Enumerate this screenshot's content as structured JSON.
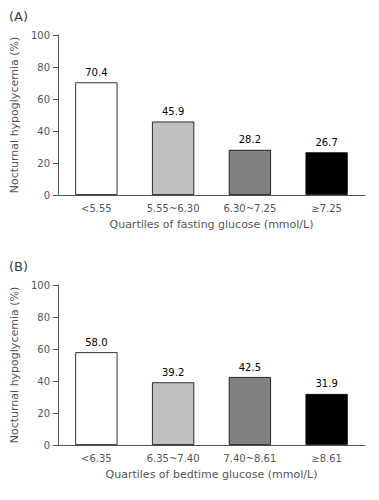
{
  "chart_data": [
    {
      "type": "bar",
      "title": "(A)",
      "categories": [
        "<5.55",
        "5.55~6.30",
        "6.30~7.25",
        "≥7.25"
      ],
      "values": [
        70.4,
        45.9,
        28.2,
        26.7
      ],
      "colors": [
        "#ffffff",
        "#c0c0c0",
        "#808080",
        "#000000"
      ],
      "xlabel": "Quartiles of fasting glucose (mmol/L)",
      "ylabel": "Nocturnal hypoglycemia (%)",
      "ylim": [
        0,
        100
      ],
      "yticks": [
        0,
        20,
        40,
        60,
        80,
        100
      ],
      "grid": false,
      "data_labels": true
    },
    {
      "type": "bar",
      "title": "(B)",
      "categories": [
        "<6.35",
        "6.35~7.40",
        "7.40~8.61",
        "≥8.61"
      ],
      "values": [
        58.0,
        39.2,
        42.5,
        31.9
      ],
      "value_labels": [
        "58.0",
        "39.2",
        "42.5",
        "31.9"
      ],
      "colors": [
        "#ffffff",
        "#c0c0c0",
        "#808080",
        "#000000"
      ],
      "xlabel": "Quartiles of bedtime glucose (mmol/L)",
      "ylabel": "Nocturnal hypoglycemia (%)",
      "ylim": [
        0,
        100
      ],
      "yticks": [
        0,
        20,
        40,
        60,
        80,
        100
      ],
      "grid": false,
      "data_labels": true
    }
  ]
}
